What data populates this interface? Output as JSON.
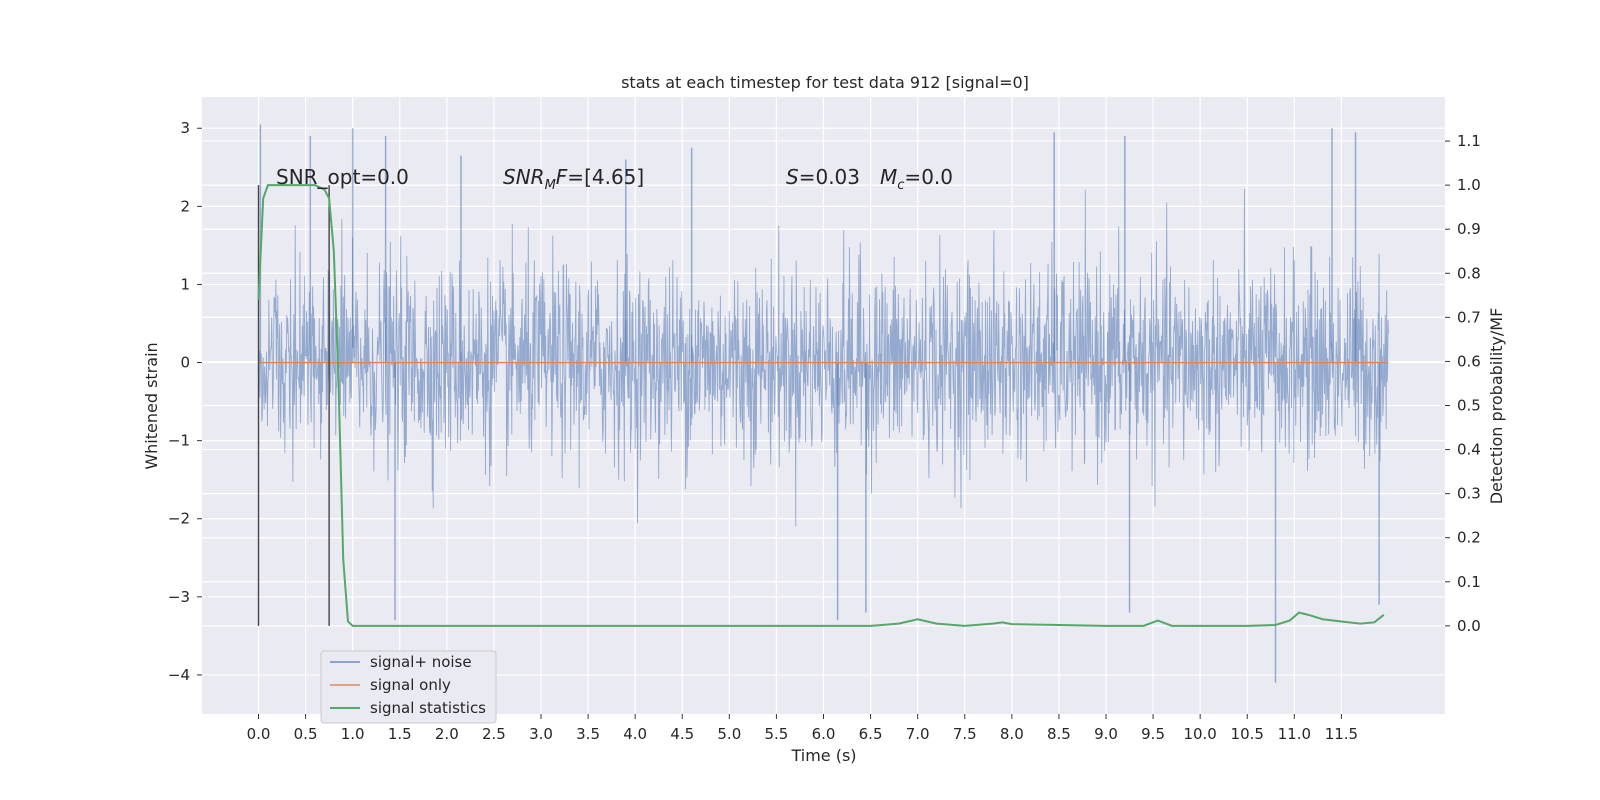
{
  "chart_data": {
    "type": "line",
    "title": "stats at each timestep for test data 912 [signal=0]",
    "xlabel": "Time (s)",
    "ylabel": "Whitened strain",
    "ylabel_right": "Detection probability/MF",
    "xlim": [
      -0.6,
      12.6
    ],
    "ylim": [
      -4.5,
      3.4
    ],
    "ylim_right": [
      -0.2,
      1.2
    ],
    "x_ticks": [
      "0.0",
      "0.5",
      "1.0",
      "1.5",
      "2.0",
      "2.5",
      "3.0",
      "3.5",
      "4.0",
      "4.5",
      "5.0",
      "5.5",
      "6.0",
      "6.5",
      "7.0",
      "7.5",
      "8.0",
      "8.5",
      "9.0",
      "9.5",
      "10.0",
      "10.5",
      "11.0",
      "11.5"
    ],
    "y_ticks": [
      "3",
      "2",
      "1",
      "0",
      "−1",
      "−2",
      "−3",
      "−4"
    ],
    "y_ticks_right": [
      "1.1",
      "1.0",
      "0.9",
      "0.8",
      "0.7",
      "0.6",
      "0.5",
      "0.4",
      "0.3",
      "0.2",
      "0.1",
      "0.0"
    ],
    "grid": true,
    "legend_position": "lower-left",
    "annotations": {
      "snr_opt": "SNR_opt=0.0",
      "snr_mf": "[4.65]",
      "s_value": "0.03",
      "mc_value": "0.0"
    },
    "vertical_markers": [
      0.0,
      0.75
    ],
    "series": [
      {
        "name": "signal+ noise",
        "color": "#4c72b0",
        "axis": "left",
        "kind": "dense noise",
        "duration_s": 12.0,
        "envelope": {
          "typical_max": 1.7,
          "typical_min": -1.7,
          "peak_max": 3.05,
          "peak_min": -4.1,
          "peaks": [
            {
              "x": 0.02,
              "y": 3.05
            },
            {
              "x": 0.55,
              "y": 2.9
            },
            {
              "x": 1.0,
              "y": 3.0
            },
            {
              "x": 1.35,
              "y": 2.9
            },
            {
              "x": 1.45,
              "y": -3.3
            },
            {
              "x": 2.15,
              "y": 2.65
            },
            {
              "x": 3.9,
              "y": 2.6
            },
            {
              "x": 4.6,
              "y": 2.75
            },
            {
              "x": 6.15,
              "y": -3.3
            },
            {
              "x": 6.45,
              "y": -3.2
            },
            {
              "x": 8.45,
              "y": 2.95
            },
            {
              "x": 9.2,
              "y": 2.9
            },
            {
              "x": 9.25,
              "y": -3.2
            },
            {
              "x": 10.8,
              "y": -4.1
            },
            {
              "x": 11.4,
              "y": 3.0
            },
            {
              "x": 11.65,
              "y": 2.95
            },
            {
              "x": 11.9,
              "y": -3.1
            }
          ]
        }
      },
      {
        "name": "signal only",
        "color": "#dd8452",
        "axis": "left",
        "x": [
          0.0,
          12.0
        ],
        "y": [
          0.0,
          0.0
        ]
      },
      {
        "name": "signal statistics",
        "color": "#55a868",
        "axis": "right",
        "x": [
          0.0,
          0.05,
          0.1,
          0.2,
          0.3,
          0.4,
          0.5,
          0.6,
          0.7,
          0.75,
          0.8,
          0.85,
          0.9,
          0.95,
          1.0,
          1.5,
          2.0,
          3.0,
          4.0,
          5.0,
          6.0,
          6.5,
          6.8,
          7.0,
          7.2,
          7.5,
          7.8,
          7.9,
          8.0,
          8.2,
          8.5,
          9.0,
          9.4,
          9.55,
          9.7,
          10.0,
          10.5,
          10.8,
          10.95,
          11.05,
          11.15,
          11.3,
          11.5,
          11.7,
          11.85,
          11.95
        ],
        "y": [
          0.74,
          0.97,
          1.0,
          1.0,
          1.0,
          1.0,
          1.0,
          1.0,
          0.99,
          0.97,
          0.85,
          0.55,
          0.15,
          0.01,
          0.0,
          0.0,
          0.0,
          0.0,
          0.0,
          0.0,
          0.0,
          0.0,
          0.005,
          0.015,
          0.005,
          0.0,
          0.005,
          0.008,
          0.004,
          0.003,
          0.002,
          0.0,
          0.0,
          0.012,
          0.0,
          0.0,
          0.0,
          0.002,
          0.012,
          0.03,
          0.025,
          0.015,
          0.01,
          0.005,
          0.008,
          0.025
        ]
      }
    ]
  }
}
